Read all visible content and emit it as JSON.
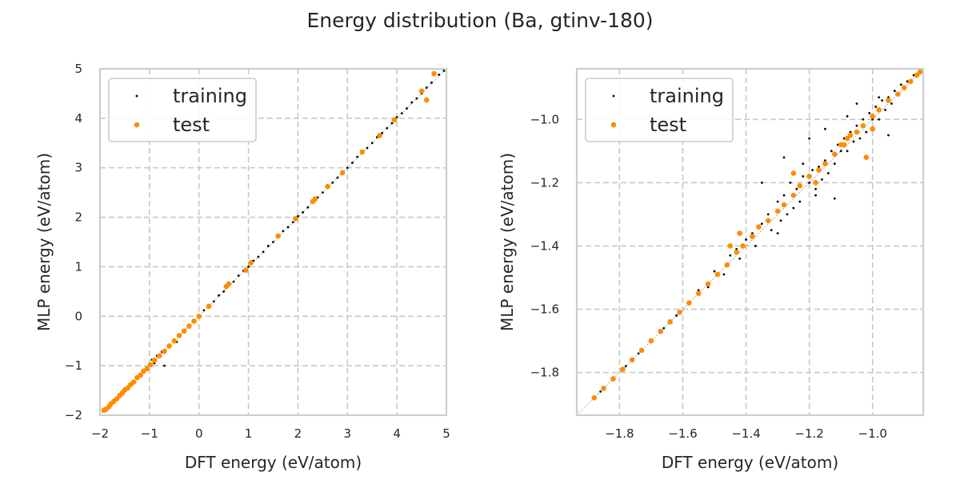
{
  "figure": {
    "title": "Energy distribution (Ba, gtinv-180)"
  },
  "colors": {
    "training": "#000000",
    "test": "#ff8c00",
    "diagonal": "#999999",
    "grid": "#c8c8c8",
    "frame": "#cccccc"
  },
  "chart_data": [
    {
      "type": "scatter",
      "xlabel": "DFT energy (eV/atom)",
      "ylabel": "MLP energy (eV/atom)",
      "xlim": [
        -2,
        5
      ],
      "ylim": [
        -2,
        5
      ],
      "xticks": [
        -2,
        -1,
        0,
        1,
        2,
        3,
        4,
        5
      ],
      "yticks": [
        -2,
        -1,
        0,
        1,
        2,
        3,
        4,
        5
      ],
      "xtick_labels": [
        "−2",
        "−1",
        "0",
        "1",
        "2",
        "3",
        "4",
        "5"
      ],
      "ytick_labels": [
        "−2",
        "−1",
        "0",
        "1",
        "2",
        "3",
        "4",
        "5"
      ],
      "grid": true,
      "legend": "upper-left",
      "series": [
        {
          "name": "training",
          "points": [
            [
              -1.9,
              -1.9
            ],
            [
              -1.85,
              -1.86
            ],
            [
              -1.8,
              -1.79
            ],
            [
              -1.75,
              -1.76
            ],
            [
              -1.7,
              -1.69
            ],
            [
              -1.62,
              -1.63
            ],
            [
              -1.55,
              -1.54
            ],
            [
              -1.48,
              -1.5
            ],
            [
              -1.4,
              -1.38
            ],
            [
              -1.3,
              -1.32
            ],
            [
              -1.2,
              -1.18
            ],
            [
              -1.1,
              -1.13
            ],
            [
              -1.0,
              -0.97
            ],
            [
              -0.95,
              -0.88
            ],
            [
              -0.9,
              -0.95
            ],
            [
              -0.85,
              -0.8
            ],
            [
              -0.7,
              -1.0
            ],
            [
              -0.75,
              -0.72
            ],
            [
              -0.6,
              -0.62
            ],
            [
              -0.5,
              -0.48
            ],
            [
              -0.45,
              -0.52
            ],
            [
              -0.4,
              -0.38
            ],
            [
              -0.3,
              -0.28
            ],
            [
              -0.2,
              -0.22
            ],
            [
              -0.1,
              -0.08
            ],
            [
              0.0,
              0.02
            ],
            [
              0.1,
              0.12
            ],
            [
              0.2,
              0.18
            ],
            [
              0.3,
              0.3
            ],
            [
              0.4,
              0.42
            ],
            [
              0.5,
              0.5
            ],
            [
              0.6,
              0.62
            ],
            [
              0.7,
              0.7
            ],
            [
              0.8,
              0.82
            ],
            [
              0.9,
              0.92
            ],
            [
              1.0,
              1.0
            ],
            [
              1.1,
              1.12
            ],
            [
              1.2,
              1.2
            ],
            [
              1.3,
              1.3
            ],
            [
              1.4,
              1.42
            ],
            [
              1.5,
              1.5
            ],
            [
              1.6,
              1.6
            ],
            [
              1.7,
              1.72
            ],
            [
              1.8,
              1.8
            ],
            [
              1.9,
              1.9
            ],
            [
              2.0,
              2.02
            ],
            [
              2.1,
              2.1
            ],
            [
              2.2,
              2.2
            ],
            [
              2.3,
              2.32
            ],
            [
              2.4,
              2.4
            ],
            [
              2.5,
              2.5
            ],
            [
              2.6,
              2.62
            ],
            [
              2.7,
              2.7
            ],
            [
              2.8,
              2.8
            ],
            [
              2.9,
              2.92
            ],
            [
              3.0,
              3.0
            ],
            [
              3.1,
              3.1
            ],
            [
              3.2,
              3.22
            ],
            [
              3.3,
              3.3
            ],
            [
              3.4,
              3.4
            ],
            [
              3.5,
              3.5
            ],
            [
              3.6,
              3.62
            ],
            [
              3.7,
              3.7
            ],
            [
              3.8,
              3.8
            ],
            [
              3.9,
              3.9
            ],
            [
              4.0,
              4.02
            ],
            [
              4.1,
              4.1
            ],
            [
              4.2,
              4.2
            ],
            [
              4.3,
              4.32
            ],
            [
              4.4,
              4.4
            ],
            [
              4.5,
              4.5
            ],
            [
              4.6,
              4.62
            ],
            [
              4.7,
              4.72
            ],
            [
              4.85,
              4.88
            ],
            [
              4.95,
              4.96
            ]
          ]
        },
        {
          "name": "test",
          "points": [
            [
              -1.92,
              -1.9
            ],
            [
              -1.88,
              -1.88
            ],
            [
              -1.82,
              -1.83
            ],
            [
              -1.78,
              -1.77
            ],
            [
              -1.72,
              -1.72
            ],
            [
              -1.66,
              -1.67
            ],
            [
              -1.6,
              -1.6
            ],
            [
              -1.55,
              -1.55
            ],
            [
              -1.5,
              -1.49
            ],
            [
              -1.44,
              -1.45
            ],
            [
              -1.38,
              -1.38
            ],
            [
              -1.32,
              -1.33
            ],
            [
              -1.25,
              -1.24
            ],
            [
              -1.18,
              -1.19
            ],
            [
              -1.12,
              -1.11
            ],
            [
              -1.05,
              -1.06
            ],
            [
              -0.98,
              -0.98
            ],
            [
              -0.9,
              -0.89
            ],
            [
              -0.8,
              -0.8
            ],
            [
              -0.7,
              -0.71
            ],
            [
              -0.6,
              -0.6
            ],
            [
              -0.5,
              -0.5
            ],
            [
              -0.4,
              -0.39
            ],
            [
              -0.3,
              -0.3
            ],
            [
              -0.2,
              -0.2
            ],
            [
              -0.1,
              -0.1
            ],
            [
              0.0,
              0.0
            ],
            [
              0.2,
              0.2
            ],
            [
              0.55,
              0.6
            ],
            [
              0.6,
              0.65
            ],
            [
              0.95,
              0.93
            ],
            [
              1.05,
              1.08
            ],
            [
              1.6,
              1.62
            ],
            [
              1.95,
              1.97
            ],
            [
              2.3,
              2.32
            ],
            [
              2.35,
              2.37
            ],
            [
              2.6,
              2.62
            ],
            [
              2.9,
              2.9
            ],
            [
              3.3,
              3.32
            ],
            [
              3.65,
              3.65
            ],
            [
              3.95,
              3.97
            ],
            [
              4.5,
              4.55
            ],
            [
              4.6,
              4.37
            ],
            [
              4.75,
              4.9
            ]
          ]
        }
      ]
    },
    {
      "type": "scatter",
      "xlabel": "DFT energy (eV/atom)",
      "ylabel": "MLP energy (eV/atom)",
      "xlim": [
        -1.935,
        -0.84
      ],
      "ylim": [
        -1.935,
        -0.84
      ],
      "xticks": [
        -1.8,
        -1.6,
        -1.4,
        -1.2,
        -1.0
      ],
      "yticks": [
        -1.8,
        -1.6,
        -1.4,
        -1.2,
        -1.0
      ],
      "xtick_labels": [
        "−1.8",
        "−1.6",
        "−1.4",
        "−1.2",
        "−1.0"
      ],
      "ytick_labels": [
        "−1.8",
        "−1.6",
        "−1.4",
        "−1.2",
        "−1.0"
      ],
      "grid": true,
      "legend": "upper-left",
      "series": [
        {
          "name": "training",
          "points": [
            [
              -1.86,
              -1.86
            ],
            [
              -1.82,
              -1.82
            ],
            [
              -1.78,
              -1.78
            ],
            [
              -1.74,
              -1.74
            ],
            [
              -1.7,
              -1.7
            ],
            [
              -1.66,
              -1.66
            ],
            [
              -1.62,
              -1.62
            ],
            [
              -1.58,
              -1.58
            ],
            [
              -1.55,
              -1.54
            ],
            [
              -1.52,
              -1.53
            ],
            [
              -1.5,
              -1.48
            ],
            [
              -1.47,
              -1.49
            ],
            [
              -1.45,
              -1.43
            ],
            [
              -1.43,
              -1.41
            ],
            [
              -1.42,
              -1.44
            ],
            [
              -1.4,
              -1.38
            ],
            [
              -1.38,
              -1.36
            ],
            [
              -1.37,
              -1.4
            ],
            [
              -1.35,
              -1.33
            ],
            [
              -1.33,
              -1.3
            ],
            [
              -1.32,
              -1.35
            ],
            [
              -1.3,
              -1.26
            ],
            [
              -1.29,
              -1.32
            ],
            [
              -1.28,
              -1.24
            ],
            [
              -1.27,
              -1.3
            ],
            [
              -1.26,
              -1.2
            ],
            [
              -1.25,
              -1.28
            ],
            [
              -1.24,
              -1.22
            ],
            [
              -1.23,
              -1.26
            ],
            [
              -1.22,
              -1.18
            ],
            [
              -1.2,
              -1.2
            ],
            [
              -1.19,
              -1.16
            ],
            [
              -1.18,
              -1.22
            ],
            [
              -1.17,
              -1.15
            ],
            [
              -1.16,
              -1.19
            ],
            [
              -1.15,
              -1.13
            ],
            [
              -1.14,
              -1.17
            ],
            [
              -1.13,
              -1.1
            ],
            [
              -1.12,
              -1.14
            ],
            [
              -1.11,
              -1.08
            ],
            [
              -1.1,
              -1.1
            ],
            [
              -1.09,
              -1.06
            ],
            [
              -1.08,
              -1.1
            ],
            [
              -1.07,
              -1.04
            ],
            [
              -1.06,
              -1.07
            ],
            [
              -1.05,
              -1.02
            ],
            [
              -1.04,
              -1.06
            ],
            [
              -1.03,
              -1.0
            ],
            [
              -1.02,
              -1.04
            ],
            [
              -1.01,
              -0.98
            ],
            [
              -1.0,
              -1.0
            ],
            [
              -0.99,
              -0.96
            ],
            [
              -0.98,
              -1.0
            ],
            [
              -0.97,
              -0.94
            ],
            [
              -0.96,
              -0.97
            ],
            [
              -0.95,
              -0.93
            ],
            [
              -0.94,
              -0.95
            ],
            [
              -0.93,
              -0.91
            ],
            [
              -0.92,
              -0.92
            ],
            [
              -0.91,
              -0.89
            ],
            [
              -0.9,
              -0.9
            ],
            [
              -0.89,
              -0.88
            ],
            [
              -0.88,
              -0.88
            ],
            [
              -0.87,
              -0.86
            ],
            [
              -0.86,
              -0.86
            ],
            [
              -0.85,
              -0.85
            ],
            [
              -1.35,
              -1.2
            ],
            [
              -1.28,
              -1.12
            ],
            [
              -1.2,
              -1.06
            ],
            [
              -1.15,
              -1.03
            ],
            [
              -1.05,
              -0.95
            ],
            [
              -1.12,
              -1.25
            ],
            [
              -1.02,
              -1.12
            ],
            [
              -0.95,
              -1.05
            ],
            [
              -1.22,
              -1.14
            ],
            [
              -1.08,
              -0.99
            ],
            [
              -1.3,
              -1.36
            ],
            [
              -1.18,
              -1.24
            ],
            [
              -0.98,
              -0.93
            ]
          ]
        },
        {
          "name": "test",
          "points": [
            [
              -1.88,
              -1.88
            ],
            [
              -1.85,
              -1.85
            ],
            [
              -1.82,
              -1.82
            ],
            [
              -1.79,
              -1.79
            ],
            [
              -1.76,
              -1.76
            ],
            [
              -1.73,
              -1.73
            ],
            [
              -1.7,
              -1.7
            ],
            [
              -1.67,
              -1.67
            ],
            [
              -1.64,
              -1.64
            ],
            [
              -1.61,
              -1.61
            ],
            [
              -1.58,
              -1.58
            ],
            [
              -1.55,
              -1.55
            ],
            [
              -1.52,
              -1.52
            ],
            [
              -1.49,
              -1.49
            ],
            [
              -1.46,
              -1.46
            ],
            [
              -1.43,
              -1.42
            ],
            [
              -1.41,
              -1.4
            ],
            [
              -1.38,
              -1.37
            ],
            [
              -1.36,
              -1.34
            ],
            [
              -1.33,
              -1.32
            ],
            [
              -1.3,
              -1.29
            ],
            [
              -1.28,
              -1.27
            ],
            [
              -1.25,
              -1.24
            ],
            [
              -1.23,
              -1.21
            ],
            [
              -1.2,
              -1.18
            ],
            [
              -1.17,
              -1.16
            ],
            [
              -1.15,
              -1.14
            ],
            [
              -1.12,
              -1.11
            ],
            [
              -1.1,
              -1.08
            ],
            [
              -1.08,
              -1.06
            ],
            [
              -1.05,
              -1.04
            ],
            [
              -1.03,
              -1.02
            ],
            [
              -1.0,
              -0.99
            ],
            [
              -0.98,
              -0.97
            ],
            [
              -0.95,
              -0.94
            ],
            [
              -0.92,
              -0.92
            ],
            [
              -0.9,
              -0.9
            ],
            [
              -0.88,
              -0.88
            ],
            [
              -0.86,
              -0.86
            ],
            [
              -0.85,
              -0.85
            ],
            [
              -1.42,
              -1.36
            ],
            [
              -1.25,
              -1.17
            ],
            [
              -1.18,
              -1.2
            ],
            [
              -1.07,
              -1.05
            ],
            [
              -1.02,
              -1.12
            ],
            [
              -1.09,
              -1.08
            ],
            [
              -1.0,
              -1.03
            ],
            [
              -1.45,
              -1.4
            ]
          ]
        }
      ]
    }
  ]
}
